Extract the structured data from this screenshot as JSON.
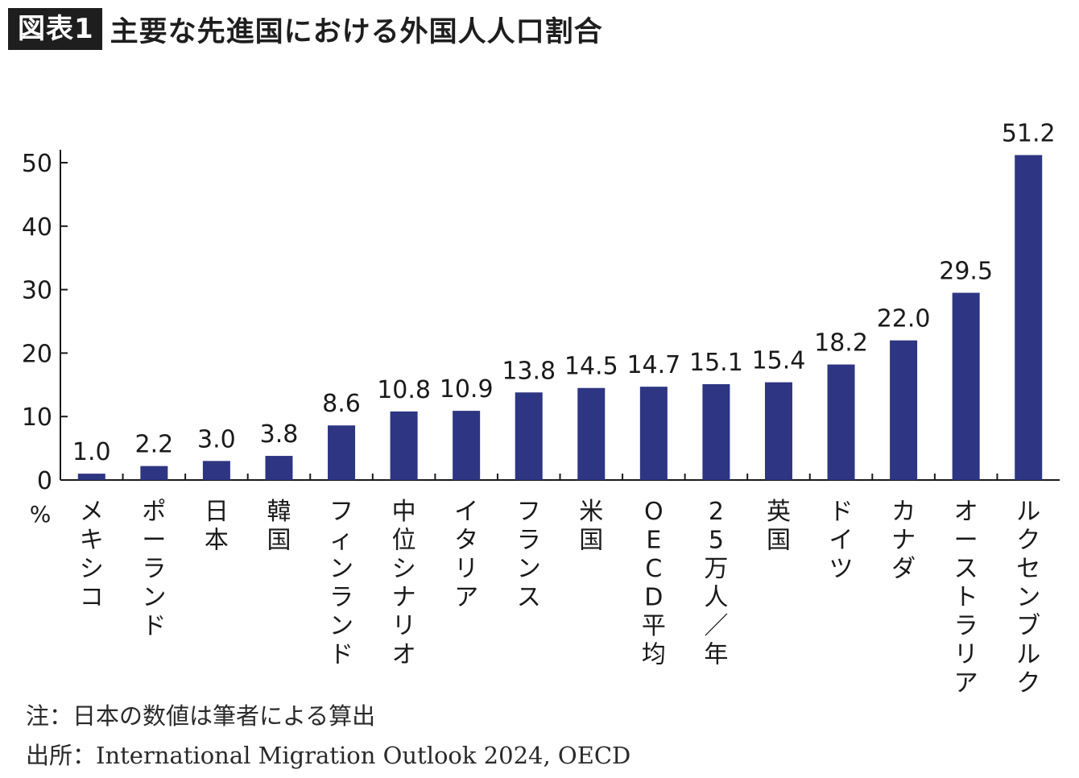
{
  "header": {
    "badge": "図表1",
    "title": "主要な先進国における外国人人口割合"
  },
  "notes": {
    "note": "注：日本の数値は筆者による算出",
    "source": "出所：International Migration Outlook 2024, OECD"
  },
  "colors": {
    "bar": "#2e3582",
    "axis": "#1a1a1a",
    "text": "#1a1a1a"
  },
  "chart_data": {
    "type": "bar",
    "unit_label": "%",
    "ylim": [
      0,
      50
    ],
    "yticks": [
      0,
      10,
      20,
      30,
      40,
      50
    ],
    "grid": false,
    "categories": [
      "メキシコ",
      "ポーランド",
      "日本",
      "韓国",
      "フィンランド",
      "中位シナリオ",
      "イタリア",
      "フランス",
      "米国",
      "OECD平均",
      "25万人／年",
      "英国",
      "ドイツ",
      "カナダ",
      "オーストラリア",
      "ルクセンブルク"
    ],
    "values": [
      1.0,
      2.2,
      3.0,
      3.8,
      8.6,
      10.8,
      10.9,
      13.8,
      14.5,
      14.7,
      15.1,
      15.4,
      18.2,
      22.0,
      29.5,
      51.2
    ],
    "value_labels": [
      "1.0",
      "2.2",
      "3.0",
      "3.8",
      "8.6",
      "10.8",
      "10.9",
      "13.8",
      "14.5",
      "14.7",
      "15.1",
      "15.4",
      "18.2",
      "22.0",
      "29.5",
      "51.2"
    ]
  }
}
